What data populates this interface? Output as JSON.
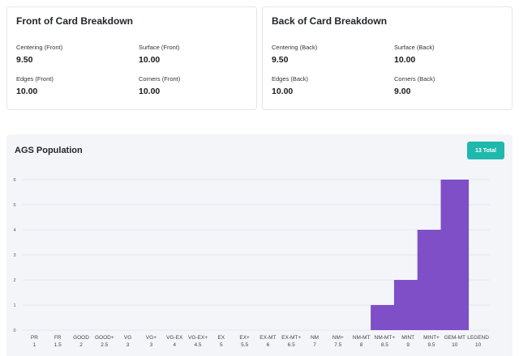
{
  "front_card": {
    "title": "Front of Card Breakdown",
    "metrics": [
      {
        "label": "Centering (Front)",
        "value": "9.50"
      },
      {
        "label": "Surface (Front)",
        "value": "10.00"
      },
      {
        "label": "Edges (Front)",
        "value": "10.00"
      },
      {
        "label": "Corners (Front)",
        "value": "10.00"
      }
    ]
  },
  "back_card": {
    "title": "Back of Card Breakdown",
    "metrics": [
      {
        "label": "Centering (Back)",
        "value": "9.50"
      },
      {
        "label": "Surface (Back)",
        "value": "10.00"
      },
      {
        "label": "Edges (Back)",
        "value": "10.00"
      },
      {
        "label": "Corners (Back)",
        "value": "9.00"
      }
    ]
  },
  "population": {
    "title": "AGS Population",
    "total_badge": "13 Total"
  },
  "colors": {
    "bar": "#7e4fc7",
    "badge": "#1fb8ad",
    "panel_background": "#f4f5f9"
  },
  "chart_data": {
    "type": "bar",
    "categories": [
      "PR",
      "FR",
      "GOOD",
      "GOOD+",
      "VG",
      "VG+",
      "VG-EX",
      "VG-EX+",
      "EX",
      "EX+",
      "EX-MT",
      "EX-MT+",
      "NM",
      "NM+",
      "NM-MT",
      "NM-MT+",
      "MINT",
      "MINT+",
      "GEM-MT",
      "LEGEND"
    ],
    "grades": [
      "1",
      "1.5",
      "2",
      "2.5",
      "3",
      "3",
      "4",
      "4.5",
      "5",
      "5.5",
      "6",
      "6.5",
      "7",
      "7.5",
      "8",
      "8.5",
      "9",
      "9.5",
      "10",
      "10"
    ],
    "values": [
      0,
      0,
      0,
      0,
      0,
      0,
      0,
      0,
      0,
      0,
      0,
      0,
      0,
      0,
      0,
      1,
      2,
      4,
      6,
      0
    ],
    "yticks": [
      0,
      1,
      2,
      3,
      4,
      5,
      6
    ],
    "ylim": [
      0,
      6
    ],
    "grid": true
  }
}
